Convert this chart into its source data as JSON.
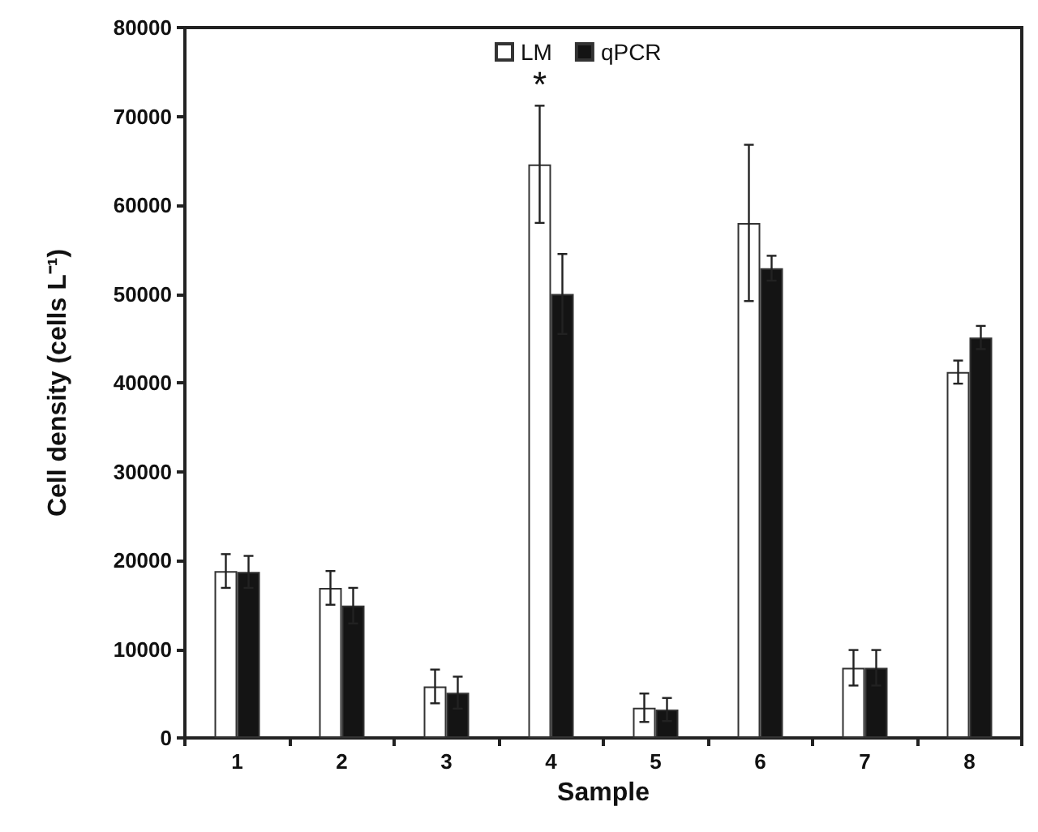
{
  "chart_data": {
    "type": "bar",
    "xlabel": "Sample",
    "ylabel": "Cell density (cells L⁻¹)",
    "categories": [
      "1",
      "2",
      "3",
      "4",
      "5",
      "6",
      "7",
      "8"
    ],
    "series": [
      {
        "name": "LM",
        "color": "#ffffff",
        "values": [
          18800,
          16900,
          5800,
          64600,
          3400,
          58000,
          7900,
          41200
        ],
        "errors": [
          1900,
          1900,
          1900,
          6600,
          1600,
          8800,
          2000,
          1300
        ]
      },
      {
        "name": "qPCR",
        "color": "#141414",
        "values": [
          18700,
          14900,
          5100,
          50000,
          3200,
          52900,
          7900,
          45100
        ],
        "errors": [
          1800,
          2000,
          1800,
          4500,
          1300,
          1400,
          2000,
          1300
        ]
      }
    ],
    "ylim": [
      0,
      80000
    ],
    "yticks": [
      0,
      10000,
      20000,
      30000,
      40000,
      50000,
      60000,
      70000,
      80000
    ],
    "grid": false,
    "legend": "top",
    "annotations": [
      {
        "text": "*",
        "x": "4",
        "y": 71200
      }
    ]
  }
}
